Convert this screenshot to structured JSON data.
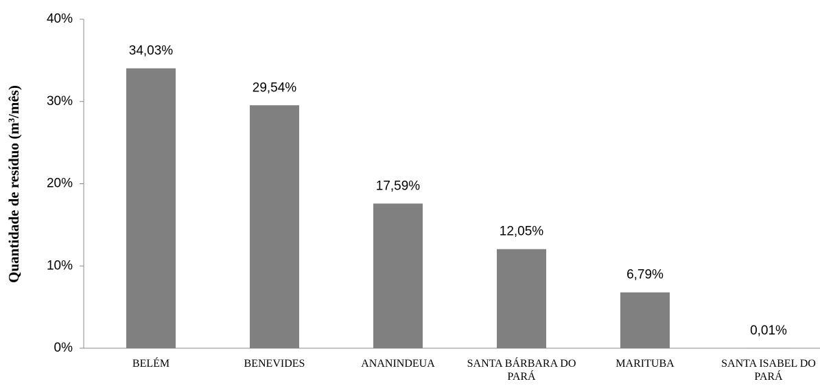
{
  "chart_data": {
    "type": "bar",
    "y_axis_label": "Quantidade de resíduo (m³/mês)",
    "categories": [
      "BELÉM",
      "BENEVIDES",
      "ANANINDEUA",
      "SANTA BÁRBARA DO PARÁ",
      "MARITUBA",
      "SANTA ISABEL DO PARÁ"
    ],
    "values": [
      34.03,
      29.54,
      17.59,
      12.05,
      6.79,
      0.01
    ],
    "value_labels": [
      "34,03%",
      "29,54%",
      "17,59%",
      "12,05%",
      "6,79%",
      "0,01%"
    ],
    "color": "#808080",
    "ylim": [
      0,
      40
    ],
    "yticks": [
      {
        "value": 0,
        "label": "0%"
      },
      {
        "value": 10,
        "label": "10%"
      },
      {
        "value": 20,
        "label": "20%"
      },
      {
        "value": 30,
        "label": "30%"
      },
      {
        "value": 40,
        "label": "40%"
      }
    ],
    "grid": false
  }
}
